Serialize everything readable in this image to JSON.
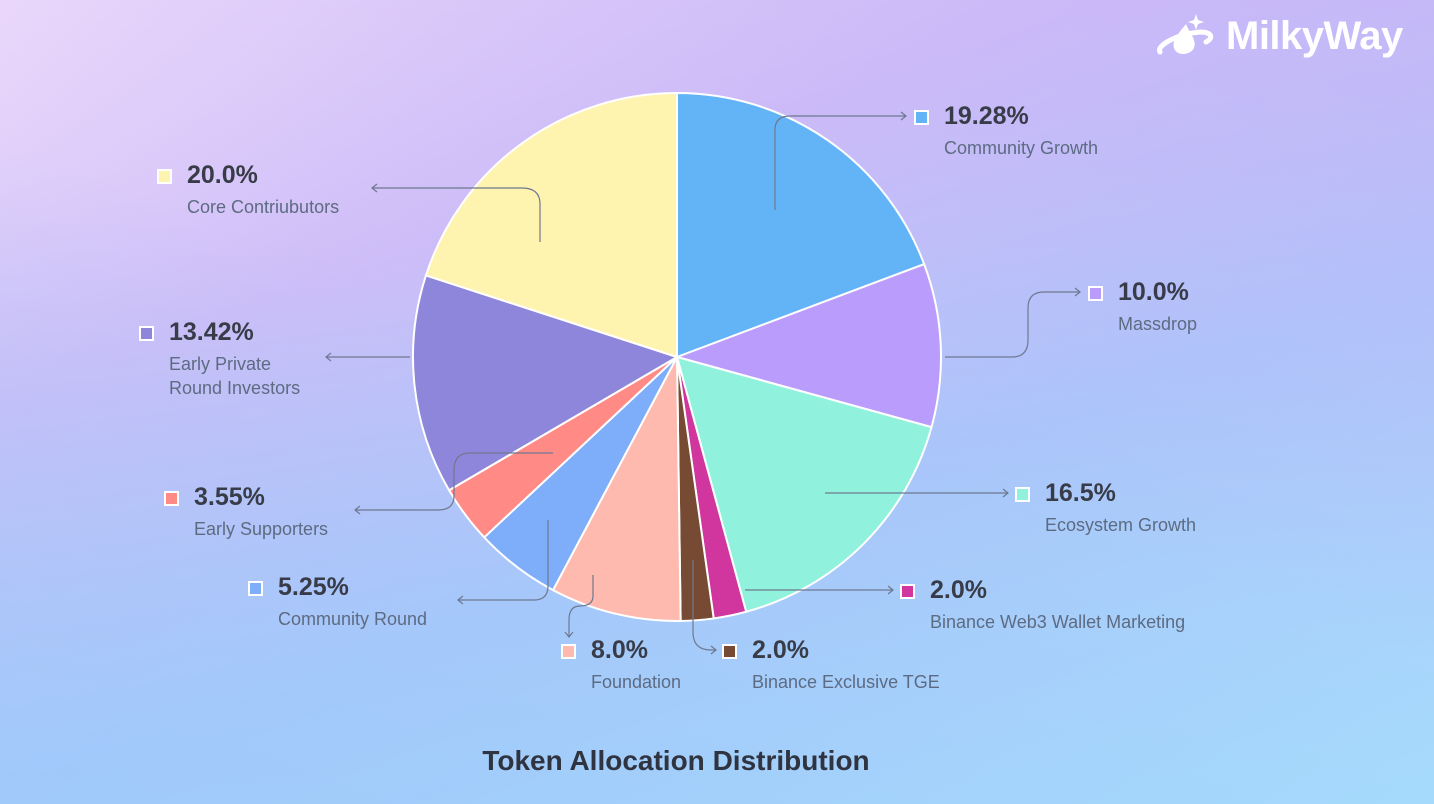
{
  "brand": {
    "name": "MilkyWay"
  },
  "chart_data": {
    "type": "pie",
    "title": "Token Allocation Distribution",
    "start": "top",
    "direction": "clockwise",
    "slices": [
      {
        "label": "Community Growth",
        "value": 19.28,
        "display": "19.28%",
        "color": "#63b4f6"
      },
      {
        "label": "Massdrop",
        "value": 10.0,
        "display": "10.0%",
        "color": "#b99cfb"
      },
      {
        "label": "Ecosystem Growth",
        "value": 16.5,
        "display": "16.5%",
        "color": "#90f2dc"
      },
      {
        "label": "Binance Web3 Wallet Marketing",
        "value": 2.0,
        "display": "2.0%",
        "color": "#d0369e"
      },
      {
        "label": "Binance Exclusive TGE",
        "value": 2.0,
        "display": "2.0%",
        "color": "#774b33"
      },
      {
        "label": "Foundation",
        "value": 8.0,
        "display": "8.0%",
        "color": "#ffbab0"
      },
      {
        "label": "Community Round",
        "value": 5.25,
        "display": "5.25%",
        "color": "#7eaefa"
      },
      {
        "label": "Early Supporters",
        "value": 3.55,
        "display": "3.55%",
        "color": "#ff8a86"
      },
      {
        "label": "Early Private\nRound Investors",
        "value": 13.42,
        "display": "13.42%",
        "color": "#8e86db"
      },
      {
        "label": "Core Contriubutors",
        "value": 20.0,
        "display": "20.0%",
        "color": "#fff3b0"
      }
    ]
  }
}
